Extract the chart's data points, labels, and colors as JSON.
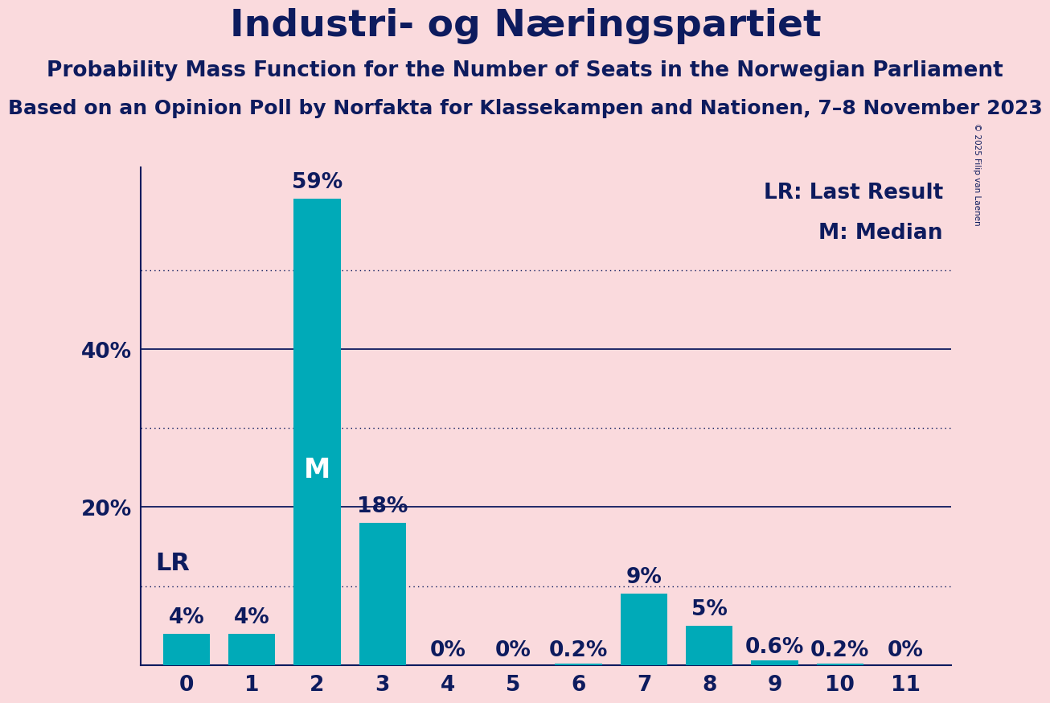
{
  "title": "Industri- og Næringspartiet",
  "subtitle1": "Probability Mass Function for the Number of Seats in the Norwegian Parliament",
  "subtitle2": "Based on an Opinion Poll by Norfakta for Klassekampen and Nationen, 7–8 November 2023",
  "copyright": "© 2025 Filip van Laenen",
  "categories": [
    0,
    1,
    2,
    3,
    4,
    5,
    6,
    7,
    8,
    9,
    10,
    11
  ],
  "values": [
    4,
    4,
    59,
    18,
    0,
    0,
    0.2,
    9,
    5,
    0.6,
    0.2,
    0
  ],
  "bar_color": "#00aab8",
  "background_color": "#fadadd",
  "title_color": "#0d1b5e",
  "axis_color": "#0d1b5e",
  "grid_color": "#0d1b5e",
  "median_bar": 2,
  "lr_bar": 0,
  "solid_gridlines": [
    20,
    40
  ],
  "dotted_gridlines": [
    10,
    30,
    50
  ],
  "annotations": {
    "0": "4%",
    "1": "4%",
    "2": "59%",
    "3": "18%",
    "4": "0%",
    "5": "0%",
    "6": "0.2%",
    "7": "9%",
    "8": "5%",
    "9": "0.6%",
    "10": "0.2%",
    "11": "0%"
  },
  "legend_lr": "LR: Last Result",
  "legend_m": "M: Median",
  "title_fontsize": 34,
  "subtitle1_fontsize": 19,
  "subtitle2_fontsize": 18,
  "bar_label_fontsize": 19,
  "tick_fontsize": 19,
  "legend_fontsize": 19,
  "m_label_fontsize": 24,
  "lr_label_fontsize": 22,
  "copyright_fontsize": 7.5,
  "ylim": [
    0,
    63
  ]
}
